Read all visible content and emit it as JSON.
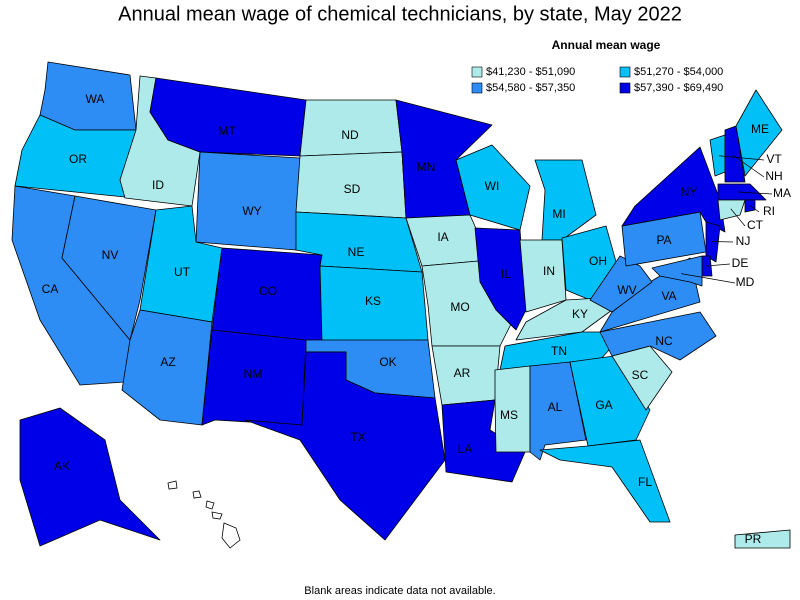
{
  "title": "Annual mean wage of chemical technicians, by state, May 2022",
  "legend": {
    "title": "Annual mean wage",
    "items": [
      {
        "label": "$41,230 - $51,090",
        "color": "#aeeaea"
      },
      {
        "label": "$51,270 - $54,000",
        "color": "#00c0f8"
      },
      {
        "label": "$54,580 - $57,350",
        "color": "#2e8cf5"
      },
      {
        "label": "$57,390 - $69,490",
        "color": "#0000e8"
      }
    ]
  },
  "states": [
    {
      "abbr": "WA",
      "color": "#2e8cf5"
    },
    {
      "abbr": "OR",
      "color": "#00c0f8"
    },
    {
      "abbr": "CA",
      "color": "#2e8cf5"
    },
    {
      "abbr": "NV",
      "color": "#2e8cf5"
    },
    {
      "abbr": "ID",
      "color": "#aeeaea"
    },
    {
      "abbr": "MT",
      "color": "#0000e8"
    },
    {
      "abbr": "WY",
      "color": "#2e8cf5"
    },
    {
      "abbr": "UT",
      "color": "#00c0f8"
    },
    {
      "abbr": "AZ",
      "color": "#2e8cf5"
    },
    {
      "abbr": "CO",
      "color": "#0000e8"
    },
    {
      "abbr": "NM",
      "color": "#0000e8"
    },
    {
      "abbr": "ND",
      "color": "#aeeaea"
    },
    {
      "abbr": "SD",
      "color": "#aeeaea"
    },
    {
      "abbr": "NE",
      "color": "#00c0f8"
    },
    {
      "abbr": "KS",
      "color": "#00c0f8"
    },
    {
      "abbr": "OK",
      "color": "#2e8cf5"
    },
    {
      "abbr": "TX",
      "color": "#0000e8"
    },
    {
      "abbr": "MN",
      "color": "#0000e8"
    },
    {
      "abbr": "IA",
      "color": "#aeeaea"
    },
    {
      "abbr": "MO",
      "color": "#aeeaea"
    },
    {
      "abbr": "AR",
      "color": "#aeeaea"
    },
    {
      "abbr": "LA",
      "color": "#0000e8"
    },
    {
      "abbr": "WI",
      "color": "#00c0f8"
    },
    {
      "abbr": "IL",
      "color": "#0000e8"
    },
    {
      "abbr": "MI",
      "color": "#00c0f8"
    },
    {
      "abbr": "IN",
      "color": "#aeeaea"
    },
    {
      "abbr": "OH",
      "color": "#00c0f8"
    },
    {
      "abbr": "KY",
      "color": "#aeeaea"
    },
    {
      "abbr": "TN",
      "color": "#00c0f8"
    },
    {
      "abbr": "MS",
      "color": "#aeeaea"
    },
    {
      "abbr": "AL",
      "color": "#2e8cf5"
    },
    {
      "abbr": "GA",
      "color": "#00c0f8"
    },
    {
      "abbr": "FL",
      "color": "#00c0f8"
    },
    {
      "abbr": "SC",
      "color": "#aeeaea"
    },
    {
      "abbr": "NC",
      "color": "#2e8cf5"
    },
    {
      "abbr": "VA",
      "color": "#2e8cf5"
    },
    {
      "abbr": "WV",
      "color": "#2e8cf5"
    },
    {
      "abbr": "PA",
      "color": "#2e8cf5"
    },
    {
      "abbr": "NY",
      "color": "#0000e8"
    },
    {
      "abbr": "VT",
      "color": "#00c0f8"
    },
    {
      "abbr": "NH",
      "color": "#0000e8"
    },
    {
      "abbr": "ME",
      "color": "#00c0f8"
    },
    {
      "abbr": "MA",
      "color": "#0000e8"
    },
    {
      "abbr": "RI",
      "color": "#0000e8"
    },
    {
      "abbr": "CT",
      "color": "#aeeaea"
    },
    {
      "abbr": "NJ",
      "color": "#0000e8"
    },
    {
      "abbr": "DE",
      "color": "#0000e8"
    },
    {
      "abbr": "MD",
      "color": "#2e8cf5"
    },
    {
      "abbr": "AK",
      "color": "#0000e8"
    },
    {
      "abbr": "PR",
      "color": "#aeeaea"
    }
  ],
  "note": "Blank areas indicate data not available."
}
